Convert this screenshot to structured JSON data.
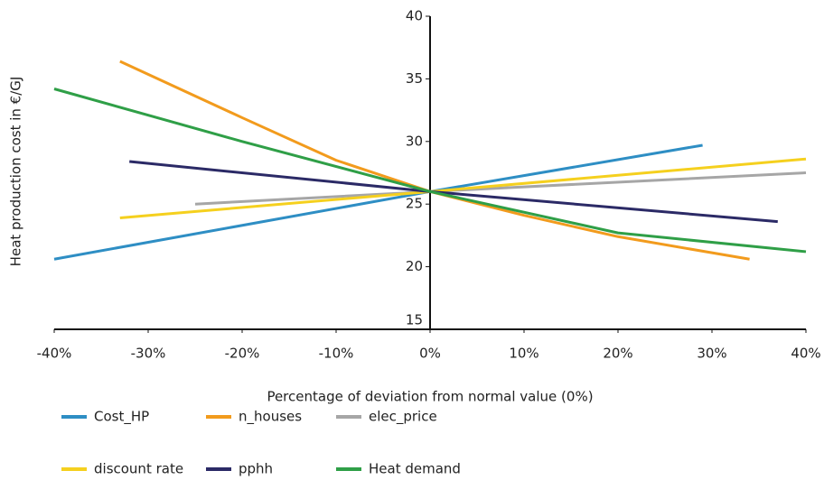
{
  "chart_data": {
    "type": "line",
    "x_label": "Percentage of deviation from normal value (0%)",
    "y_label": "Heat production cost in €/GJ",
    "xlim": [
      -40,
      40
    ],
    "xticks": [
      {
        "value": -40,
        "label": "-40%"
      },
      {
        "value": -30,
        "label": "-30%"
      },
      {
        "value": -20,
        "label": "-20%"
      },
      {
        "value": -10,
        "label": "-10%"
      },
      {
        "value": 0,
        "label": "0%"
      },
      {
        "value": 10,
        "label": "10%"
      },
      {
        "value": 20,
        "label": "20%"
      },
      {
        "value": 30,
        "label": "30%"
      },
      {
        "value": 40,
        "label": "40%"
      }
    ],
    "ylim": [
      15,
      40
    ],
    "yticks": [
      15,
      20,
      25,
      30,
      35,
      40
    ],
    "grid": false,
    "legend": "bottom",
    "series": [
      {
        "name": "Cost_HP",
        "color": "#2e8ec4",
        "x": [
          -40,
          0,
          29
        ],
        "values": [
          20.6,
          26,
          29.7
        ]
      },
      {
        "name": "n_houses",
        "color": "#f29b1d",
        "x": [
          -33,
          -20,
          -10,
          0,
          10,
          20,
          34
        ],
        "values": [
          36.4,
          31.9,
          28.5,
          26,
          24.1,
          22.4,
          20.6
        ]
      },
      {
        "name": "elec_price",
        "color": "#a6a6a6",
        "x": [
          -25,
          0,
          40
        ],
        "values": [
          25.0,
          26,
          27.5
        ]
      },
      {
        "name": "discount rate",
        "color": "#f5d01e",
        "x": [
          -33,
          0,
          40
        ],
        "values": [
          23.9,
          26,
          28.6
        ]
      },
      {
        "name": "pphh",
        "color": "#2b2a66",
        "x": [
          -32,
          0,
          37
        ],
        "values": [
          28.4,
          26,
          23.6
        ]
      },
      {
        "name": "Heat demand",
        "color": "#2f9f47",
        "x": [
          -40,
          -20,
          0,
          20,
          40
        ],
        "values": [
          34.2,
          30,
          26,
          22.7,
          21.2
        ]
      }
    ]
  }
}
